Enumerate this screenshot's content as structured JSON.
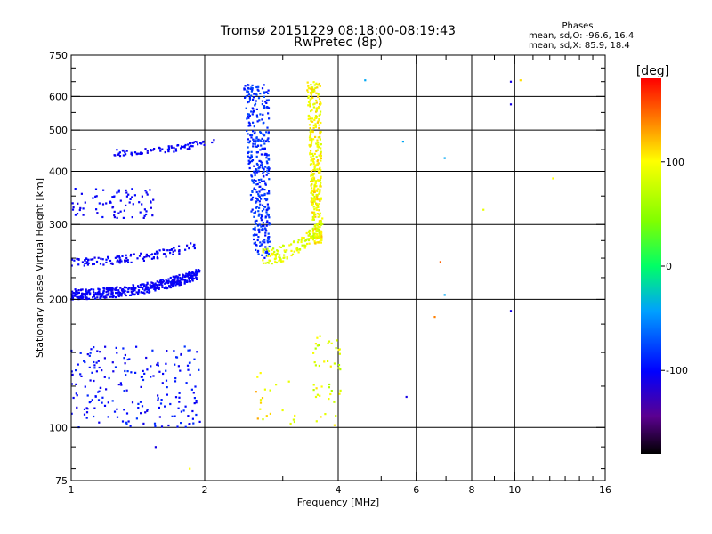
{
  "header": {
    "title_line1": "Tromsø 20151229 08:18:00-08:19:43",
    "title_line2": "RwPretec (8p)"
  },
  "stats": {
    "title": "Phases",
    "o_line": "mean, sd,O: -96.6, 16.4",
    "x_line": "mean, sd,X:  85.9, 18.4"
  },
  "chart_data": {
    "type": "scatter",
    "title": "Tromsø 20151229 08:18:00-08:19:43",
    "subtitle": "RwPretec (8p)",
    "xlabel": "Frequency [MHz]",
    "ylabel": "Stationary phase Virtual Height [km]",
    "xscale": "log",
    "yscale": "log",
    "xlim": [
      1,
      16
    ],
    "ylim": [
      75,
      750
    ],
    "grid": true,
    "xticks": [
      {
        "value": 1,
        "label": "1"
      },
      {
        "value": 2,
        "label": "2"
      },
      {
        "value": 4,
        "label": "4"
      },
      {
        "value": 6,
        "label": "6"
      },
      {
        "value": 8,
        "label": "8"
      },
      {
        "value": 10,
        "label": "10"
      },
      {
        "value": 16,
        "label": "16"
      }
    ],
    "x_minor_ticks": [
      3,
      5,
      7,
      9,
      11,
      12,
      13,
      14,
      15
    ],
    "x_grid_lines": [
      2,
      4,
      6,
      8,
      10
    ],
    "yticks": [
      {
        "value": 75,
        "label": "75"
      },
      {
        "value": 100,
        "label": "100"
      },
      {
        "value": 200,
        "label": "200"
      },
      {
        "value": 300,
        "label": "300"
      },
      {
        "value": 400,
        "label": "400"
      },
      {
        "value": 500,
        "label": "500"
      },
      {
        "value": 600,
        "label": "600"
      },
      {
        "value": 750,
        "label": "750"
      }
    ],
    "y_minor_ticks": [
      80,
      90,
      125,
      150,
      175,
      225,
      250,
      275,
      350,
      450,
      550,
      650,
      700
    ],
    "y_grid_lines": [
      100,
      200,
      300,
      400,
      500,
      600
    ],
    "colorbar": {
      "label": "[deg]",
      "range": [
        -180,
        180
      ],
      "ticks": [
        {
          "value": 100,
          "label": "100"
        },
        {
          "value": 0,
          "label": "0"
        },
        {
          "value": -100,
          "label": "-100"
        }
      ]
    },
    "series": [
      {
        "mode": "O",
        "phase_mean": -96.6,
        "phase_sd": 16.4,
        "clusters": [
          {
            "f": [
              1.0,
              1.95
            ],
            "h": [
              200,
              235
            ],
            "n": 440,
            "trend": "rising",
            "phase": [
              -110,
              -95
            ]
          },
          {
            "f": [
              1.0,
              1.9
            ],
            "h": [
              240,
              272
            ],
            "n": 120,
            "trend": "rising",
            "phase": [
              -110,
              -95
            ]
          },
          {
            "f": [
              1.0,
              1.55
            ],
            "h": [
              310,
              365
            ],
            "n": 75,
            "trend": "flat",
            "phase": [
              -110,
              -95
            ]
          },
          {
            "f": [
              1.25,
              2.1
            ],
            "h": [
              435,
              480
            ],
            "n": 80,
            "trend": "rising",
            "phase": [
              -110,
              -95
            ]
          },
          {
            "f": [
              2.45,
              2.85
            ],
            "h": [
              250,
              640
            ],
            "n": 380,
            "trend": "vertical",
            "phase": [
              -98,
              -72
            ]
          },
          {
            "f": [
              1.0,
              1.95
            ],
            "h": [
              100,
              155
            ],
            "n": 200,
            "trend": "flat",
            "phase": [
              -110,
              -80
            ]
          }
        ]
      },
      {
        "mode": "X",
        "phase_mean": 85.9,
        "phase_sd": 18.4,
        "clusters": [
          {
            "f": [
              3.4,
              3.7
            ],
            "h": [
              270,
              650
            ],
            "n": 360,
            "trend": "vertical",
            "phase": [
              80,
              120
            ]
          },
          {
            "f": [
              2.7,
              3.7
            ],
            "h": [
              242,
              310
            ],
            "n": 130,
            "trend": "rising",
            "phase": [
              70,
              105
            ]
          },
          {
            "f": [
              3.5,
              4.05
            ],
            "h": [
              100,
              165
            ],
            "n": 45,
            "trend": "flat",
            "phase": [
              60,
              110
            ]
          },
          {
            "f": [
              2.6,
              3.2
            ],
            "h": [
              100,
              135
            ],
            "n": 20,
            "trend": "flat",
            "phase": [
              70,
              130
            ]
          }
        ]
      }
    ],
    "isolated_points": [
      {
        "x": 4.6,
        "y": 655,
        "phase": -40
      },
      {
        "x": 5.6,
        "y": 470,
        "phase": -40
      },
      {
        "x": 6.95,
        "y": 430,
        "phase": -40
      },
      {
        "x": 9.8,
        "y": 650,
        "phase": -110
      },
      {
        "x": 9.8,
        "y": 575,
        "phase": -110
      },
      {
        "x": 9.8,
        "y": 188,
        "phase": -110
      },
      {
        "x": 10.3,
        "y": 655,
        "phase": 110
      },
      {
        "x": 12.2,
        "y": 385,
        "phase": 100
      },
      {
        "x": 8.5,
        "y": 325,
        "phase": 90
      },
      {
        "x": 6.95,
        "y": 205,
        "phase": -40
      },
      {
        "x": 6.6,
        "y": 182,
        "phase": 140
      },
      {
        "x": 6.8,
        "y": 245,
        "phase": 150
      },
      {
        "x": 5.7,
        "y": 118,
        "phase": -110
      },
      {
        "x": 1.55,
        "y": 90,
        "phase": -110
      },
      {
        "x": 1.85,
        "y": 80,
        "phase": 100
      }
    ]
  }
}
